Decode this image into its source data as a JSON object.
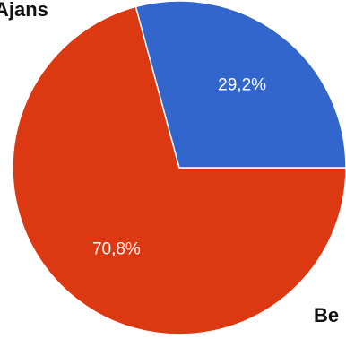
{
  "chart_data": {
    "type": "pie",
    "slices": [
      {
        "label": "Ajans",
        "value": 70.8,
        "percent_label": "70,8%",
        "color": "#dc3912"
      },
      {
        "label": "Be",
        "value": 29.2,
        "percent_label": "29,2%",
        "color": "#3366cc"
      }
    ],
    "start_angle_deg": 0,
    "direction": "clockwise"
  },
  "labels": {
    "slice_a": "Ajans",
    "slice_b": "Be"
  }
}
